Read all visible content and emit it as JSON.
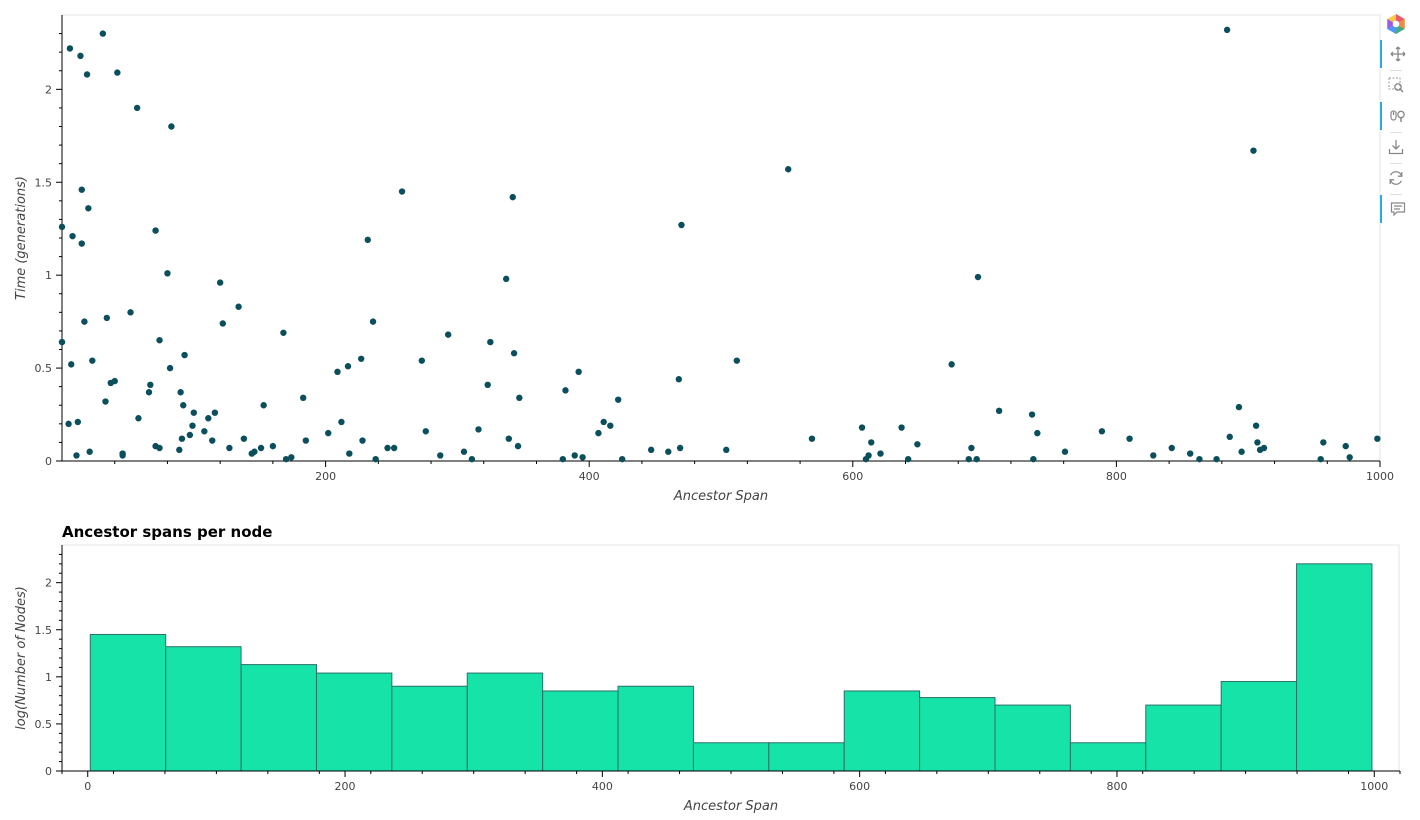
{
  "toolbar": {
    "logo": "bokeh-logo-icon",
    "tools": [
      {
        "name": "pan-tool",
        "icon": "pan-icon",
        "active": true
      },
      {
        "name": "box-zoom-tool",
        "icon": "box-zoom-icon",
        "active": false
      },
      {
        "name": "wheel-zoom-tool",
        "icon": "wheel-zoom-icon",
        "active": true
      },
      {
        "name": "save-tool",
        "icon": "save-icon",
        "active": false
      },
      {
        "name": "reset-tool",
        "icon": "reset-icon",
        "active": false
      },
      {
        "name": "hover-tool",
        "icon": "hover-icon",
        "active": true
      }
    ]
  },
  "chart_data": [
    {
      "type": "scatter",
      "title": "",
      "xlabel": "Ancestor Span",
      "ylabel": "Time (generations)",
      "xlim": [
        0,
        1000
      ],
      "ylim": [
        0,
        2.4
      ],
      "x_ticks": [
        200,
        400,
        600,
        800,
        1000
      ],
      "y_ticks": [
        0,
        0.5,
        1,
        1.5,
        2
      ],
      "y_tick_labels": [
        "0",
        "0.5",
        "1",
        "1.5",
        "2"
      ],
      "grid": false,
      "color": "#0b4f5c",
      "points": [
        [
          0,
          1.26
        ],
        [
          0,
          0.64
        ],
        [
          5,
          0.2
        ],
        [
          6,
          2.22
        ],
        [
          7,
          0.52
        ],
        [
          8,
          1.21
        ],
        [
          11,
          0.03
        ],
        [
          12,
          0.21
        ],
        [
          14,
          2.18
        ],
        [
          15,
          1.46
        ],
        [
          15,
          1.17
        ],
        [
          17,
          0.75
        ],
        [
          19,
          2.08
        ],
        [
          20,
          1.36
        ],
        [
          21,
          0.05
        ],
        [
          23,
          0.54
        ],
        [
          31,
          2.3
        ],
        [
          33,
          0.32
        ],
        [
          34,
          0.77
        ],
        [
          37,
          0.42
        ],
        [
          40,
          0.43
        ],
        [
          42,
          2.09
        ],
        [
          46,
          0.04
        ],
        [
          46,
          0.03
        ],
        [
          52,
          0.8
        ],
        [
          57,
          1.9
        ],
        [
          58,
          0.23
        ],
        [
          66,
          0.37
        ],
        [
          67,
          0.41
        ],
        [
          71,
          1.24
        ],
        [
          71,
          0.08
        ],
        [
          74,
          0.65
        ],
        [
          74,
          0.07
        ],
        [
          80,
          1.01
        ],
        [
          82,
          0.5
        ],
        [
          83,
          1.8
        ],
        [
          89,
          0.06
        ],
        [
          90,
          0.37
        ],
        [
          91,
          0.12
        ],
        [
          92,
          0.3
        ],
        [
          93,
          0.57
        ],
        [
          97,
          0.14
        ],
        [
          99,
          0.19
        ],
        [
          100,
          0.26
        ],
        [
          108,
          0.16
        ],
        [
          111,
          0.23
        ],
        [
          114,
          0.11
        ],
        [
          116,
          0.26
        ],
        [
          120,
          0.96
        ],
        [
          122,
          0.74
        ],
        [
          127,
          0.07
        ],
        [
          134,
          0.83
        ],
        [
          138,
          0.12
        ],
        [
          144,
          0.04
        ],
        [
          146,
          0.05
        ],
        [
          151,
          0.07
        ],
        [
          153,
          0.3
        ],
        [
          160,
          0.08
        ],
        [
          168,
          0.69
        ],
        [
          170,
          0.01
        ],
        [
          174,
          0.02
        ],
        [
          183,
          0.34
        ],
        [
          185,
          0.11
        ],
        [
          202,
          0.15
        ],
        [
          209,
          0.48
        ],
        [
          212,
          0.21
        ],
        [
          217,
          0.51
        ],
        [
          218,
          0.04
        ],
        [
          227,
          0.55
        ],
        [
          228,
          0.11
        ],
        [
          232,
          1.19
        ],
        [
          236,
          0.75
        ],
        [
          238,
          0.01
        ],
        [
          247,
          0.07
        ],
        [
          252,
          0.07
        ],
        [
          258,
          1.45
        ],
        [
          273,
          0.54
        ],
        [
          276,
          0.16
        ],
        [
          287,
          0.03
        ],
        [
          293,
          0.68
        ],
        [
          305,
          0.05
        ],
        [
          311,
          0.01
        ],
        [
          316,
          0.17
        ],
        [
          323,
          0.41
        ],
        [
          325,
          0.64
        ],
        [
          337,
          0.98
        ],
        [
          339,
          0.12
        ],
        [
          342,
          1.42
        ],
        [
          343,
          0.58
        ],
        [
          346,
          0.08
        ],
        [
          347,
          0.34
        ],
        [
          380,
          0.01
        ],
        [
          382,
          0.38
        ],
        [
          389,
          0.03
        ],
        [
          392,
          0.48
        ],
        [
          395,
          0.02
        ],
        [
          407,
          0.15
        ],
        [
          411,
          0.21
        ],
        [
          416,
          0.19
        ],
        [
          422,
          0.33
        ],
        [
          425,
          0.01
        ],
        [
          447,
          0.06
        ],
        [
          460,
          0.05
        ],
        [
          468,
          0.44
        ],
        [
          469,
          0.07
        ],
        [
          470,
          1.27
        ],
        [
          504,
          0.06
        ],
        [
          512,
          0.54
        ],
        [
          551,
          1.57
        ],
        [
          569,
          0.12
        ],
        [
          607,
          0.18
        ],
        [
          610,
          0.01
        ],
        [
          612,
          0.03
        ],
        [
          614,
          0.1
        ],
        [
          621,
          0.04
        ],
        [
          637,
          0.18
        ],
        [
          642,
          0.01
        ],
        [
          649,
          0.09
        ],
        [
          675,
          0.52
        ],
        [
          688,
          0.01
        ],
        [
          690,
          0.07
        ],
        [
          694,
          0.01
        ],
        [
          695,
          0.99
        ],
        [
          711,
          0.27
        ],
        [
          736,
          0.25
        ],
        [
          737,
          0.01
        ],
        [
          740,
          0.15
        ],
        [
          761,
          0.05
        ],
        [
          789,
          0.16
        ],
        [
          810,
          0.12
        ],
        [
          828,
          0.03
        ],
        [
          842,
          0.07
        ],
        [
          856,
          0.04
        ],
        [
          863,
          0.01
        ],
        [
          876,
          0.01
        ],
        [
          884,
          2.32
        ],
        [
          886,
          0.13
        ],
        [
          893,
          0.29
        ],
        [
          895,
          0.05
        ],
        [
          904,
          1.67
        ],
        [
          906,
          0.19
        ],
        [
          907,
          0.1
        ],
        [
          909,
          0.06
        ],
        [
          912,
          0.07
        ],
        [
          955,
          0.01
        ],
        [
          957,
          0.1
        ],
        [
          974,
          0.08
        ],
        [
          977,
          0.02
        ],
        [
          998,
          0.12
        ]
      ]
    },
    {
      "type": "bar",
      "title": "Ancestor spans per node",
      "xlabel": "Ancestor Span",
      "ylabel": "log(Number of Nodes)",
      "xlim": [
        -20,
        1020
      ],
      "ylim": [
        0,
        2.4
      ],
      "x_ticks": [
        0,
        200,
        400,
        600,
        800,
        1000
      ],
      "y_ticks": [
        0,
        0.5,
        1,
        1.5,
        2
      ],
      "y_tick_labels": [
        "0",
        "0.5",
        "1",
        "1.5",
        "2"
      ],
      "grid": false,
      "fill_color": "#15e3a8",
      "line_color": "#2f6f6a",
      "bin_edges": [
        2,
        60.6,
        119.2,
        177.8,
        236.4,
        295,
        353.6,
        412.2,
        470.8,
        529.4,
        588,
        646.6,
        705.2,
        763.8,
        822.4,
        881,
        939.6,
        998.2
      ],
      "values": [
        1.45,
        1.32,
        1.13,
        1.04,
        0.9,
        1.04,
        0.85,
        0.9,
        0.3,
        0.3,
        0.85,
        0.78,
        0.7,
        0.3,
        0.7,
        0.95,
        2.2
      ]
    }
  ]
}
